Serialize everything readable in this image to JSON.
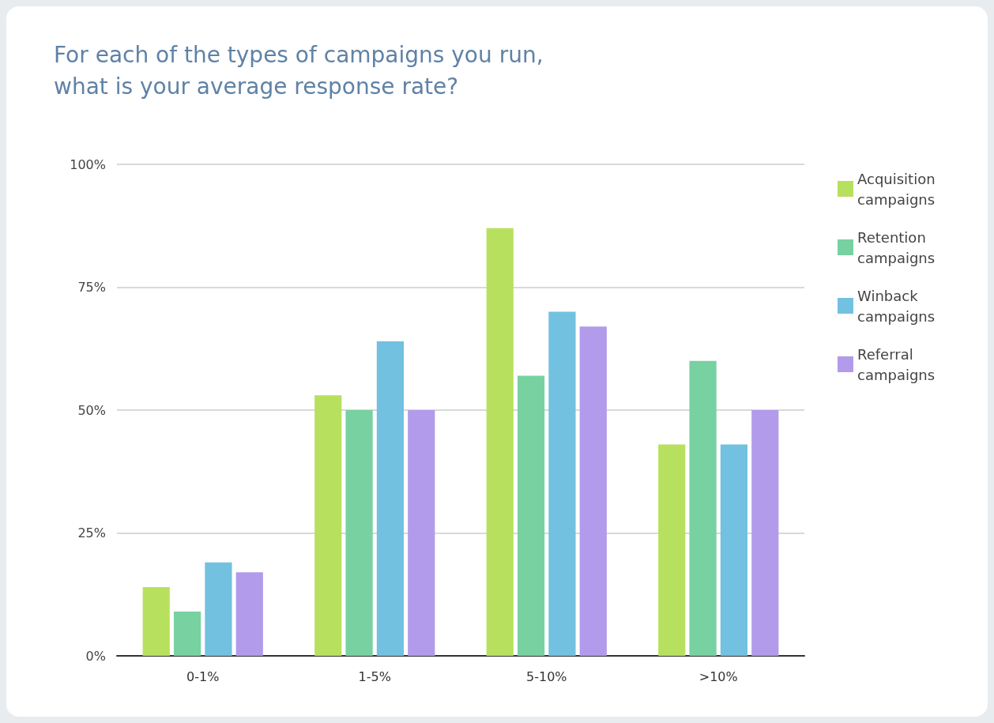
{
  "chart_data": {
    "type": "bar",
    "title": "For each of the types of campaigns you run,\nwhat is your average response rate?",
    "categories": [
      "0-1%",
      "1-5%",
      "5-10%",
      ">10%"
    ],
    "series": [
      {
        "name": "Acquisition campaigns",
        "color": "#b8e05f",
        "values": [
          14,
          53,
          87,
          43
        ]
      },
      {
        "name": "Retention campaigns",
        "color": "#77d1a1",
        "values": [
          9,
          50,
          57,
          60
        ]
      },
      {
        "name": "Winback campaigns",
        "color": "#72c1e0",
        "values": [
          19,
          64,
          70,
          43
        ]
      },
      {
        "name": "Referral campaigns",
        "color": "#b29bea",
        "values": [
          17,
          50,
          67,
          50
        ]
      }
    ],
    "ylim": [
      0,
      100
    ],
    "yticks": [
      {
        "value": 0,
        "label": "0%"
      },
      {
        "value": 25,
        "label": "25%"
      },
      {
        "value": 50,
        "label": "50%"
      },
      {
        "value": 75,
        "label": "75%"
      },
      {
        "value": 100,
        "label": "100%"
      }
    ],
    "grid": "y",
    "legend": "top right"
  }
}
